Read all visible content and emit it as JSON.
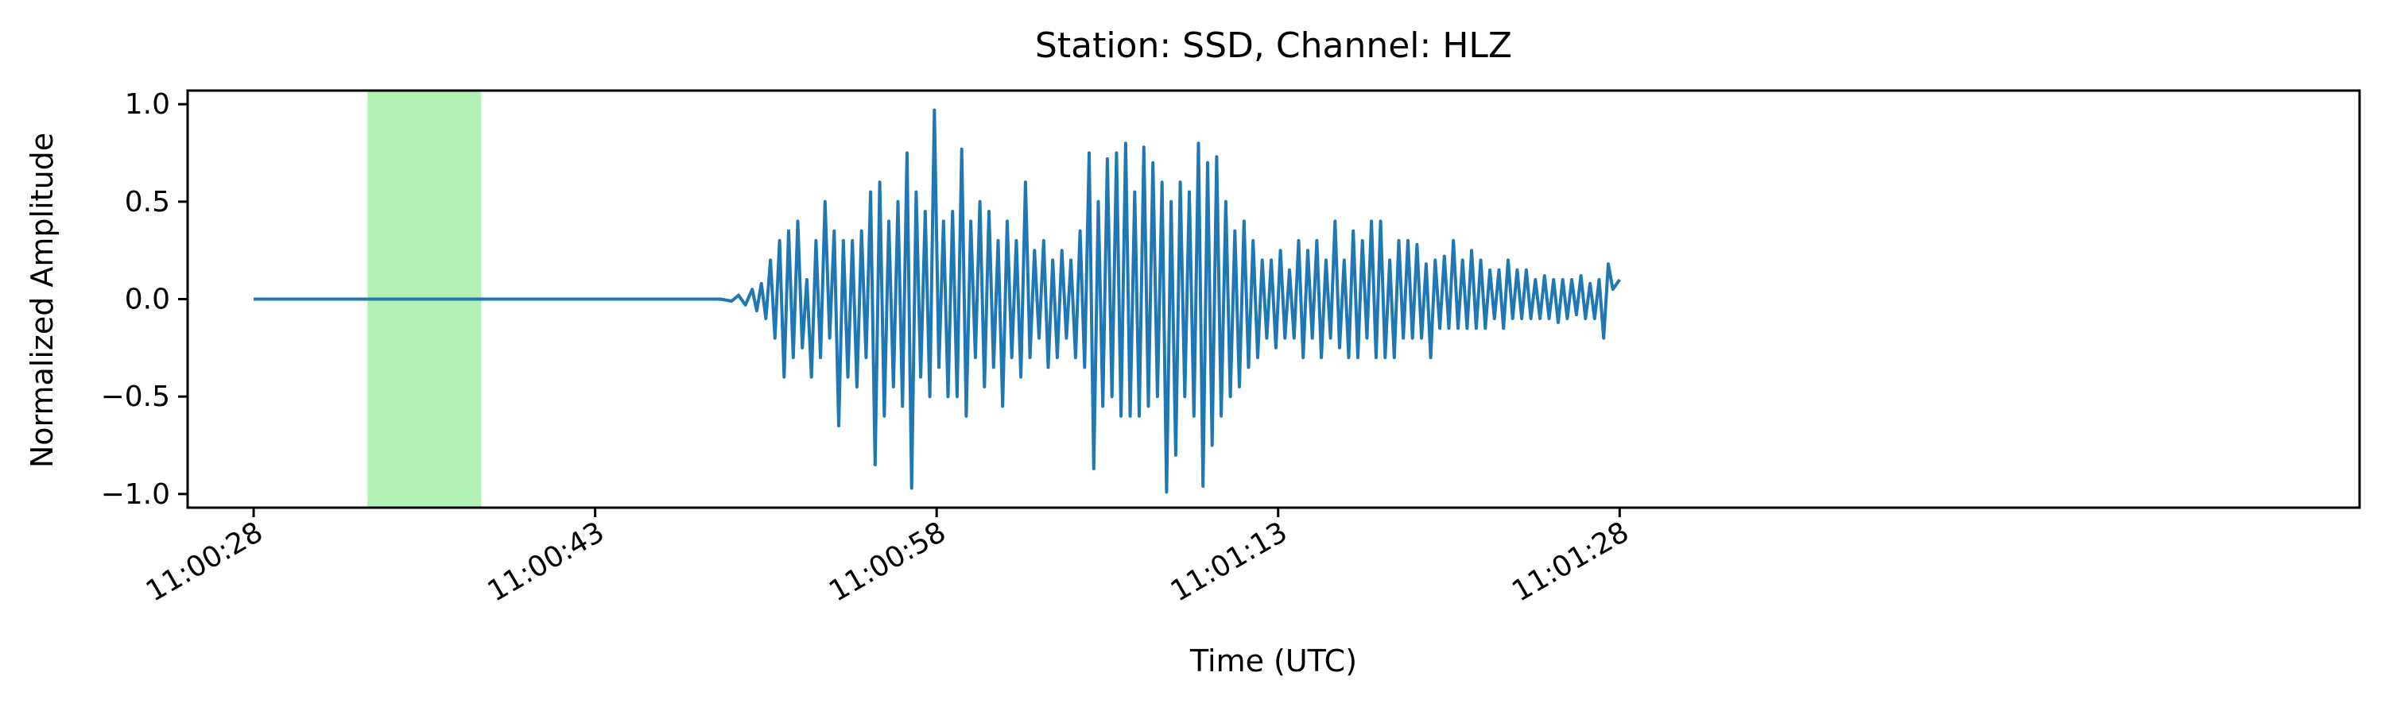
{
  "chart_data": {
    "type": "line",
    "title": "Station: SSD, Channel: HLZ",
    "xlabel": "Time (UTC)",
    "ylabel": "Normalized Amplitude",
    "x_unit": "seconds_since_11:00:28",
    "xlim": [
      -2.9,
      92.5
    ],
    "ylim": [
      -1.07,
      1.07
    ],
    "x_ticks": [
      {
        "value": 0,
        "label": "11:00:28"
      },
      {
        "value": 15,
        "label": "11:00:43"
      },
      {
        "value": 30,
        "label": "11:00:58"
      },
      {
        "value": 45,
        "label": "11:01:13"
      },
      {
        "value": 60,
        "label": "11:01:28"
      }
    ],
    "y_ticks": [
      {
        "value": 1.0,
        "label": "1.0"
      },
      {
        "value": 0.5,
        "label": "0.5"
      },
      {
        "value": 0.0,
        "label": "0.0"
      },
      {
        "value": -0.5,
        "label": "−0.5"
      },
      {
        "value": -1.0,
        "label": "−1.0"
      }
    ],
    "highlight": {
      "x_start": 5.0,
      "x_end": 10.0,
      "color": "#b2f2b2"
    },
    "series": [
      {
        "color": "#1f77b4",
        "points": [
          [
            0,
            0.0
          ],
          [
            20.5,
            0.0
          ],
          [
            21.0,
            -0.01
          ],
          [
            21.3,
            0.02
          ],
          [
            21.6,
            -0.03
          ],
          [
            21.9,
            0.05
          ],
          [
            22.1,
            -0.06
          ],
          [
            22.3,
            0.08
          ],
          [
            22.5,
            -0.1
          ],
          [
            22.7,
            0.2
          ],
          [
            22.9,
            -0.2
          ],
          [
            23.1,
            0.3
          ],
          [
            23.3,
            -0.4
          ],
          [
            23.5,
            0.35
          ],
          [
            23.7,
            -0.3
          ],
          [
            23.9,
            0.4
          ],
          [
            24.1,
            -0.25
          ],
          [
            24.3,
            0.1
          ],
          [
            24.5,
            -0.4
          ],
          [
            24.7,
            0.3
          ],
          [
            24.9,
            -0.3
          ],
          [
            25.1,
            0.5
          ],
          [
            25.3,
            -0.2
          ],
          [
            25.5,
            0.35
          ],
          [
            25.7,
            -0.65
          ],
          [
            25.9,
            0.3
          ],
          [
            26.1,
            -0.4
          ],
          [
            26.3,
            0.3
          ],
          [
            26.5,
            -0.45
          ],
          [
            26.7,
            0.35
          ],
          [
            26.9,
            -0.3
          ],
          [
            27.1,
            0.55
          ],
          [
            27.3,
            -0.85
          ],
          [
            27.5,
            0.6
          ],
          [
            27.7,
            -0.6
          ],
          [
            27.9,
            0.4
          ],
          [
            28.1,
            -0.45
          ],
          [
            28.3,
            0.5
          ],
          [
            28.5,
            -0.55
          ],
          [
            28.7,
            0.75
          ],
          [
            28.9,
            -0.97
          ],
          [
            29.1,
            0.55
          ],
          [
            29.3,
            -0.4
          ],
          [
            29.5,
            0.45
          ],
          [
            29.7,
            -0.5
          ],
          [
            29.9,
            0.97
          ],
          [
            30.1,
            -0.35
          ],
          [
            30.3,
            0.4
          ],
          [
            30.5,
            -0.5
          ],
          [
            30.7,
            0.45
          ],
          [
            30.9,
            -0.5
          ],
          [
            31.1,
            0.77
          ],
          [
            31.3,
            -0.6
          ],
          [
            31.5,
            0.4
          ],
          [
            31.7,
            -0.3
          ],
          [
            31.9,
            0.5
          ],
          [
            32.1,
            -0.45
          ],
          [
            32.3,
            0.45
          ],
          [
            32.5,
            -0.35
          ],
          [
            32.7,
            0.3
          ],
          [
            32.9,
            -0.55
          ],
          [
            33.1,
            0.4
          ],
          [
            33.3,
            -0.3
          ],
          [
            33.5,
            0.3
          ],
          [
            33.7,
            -0.4
          ],
          [
            33.9,
            0.6
          ],
          [
            34.1,
            -0.3
          ],
          [
            34.3,
            0.25
          ],
          [
            34.5,
            -0.2
          ],
          [
            34.7,
            0.3
          ],
          [
            34.9,
            -0.35
          ],
          [
            35.1,
            0.2
          ],
          [
            35.3,
            -0.3
          ],
          [
            35.5,
            0.25
          ],
          [
            35.7,
            -0.2
          ],
          [
            35.9,
            0.2
          ],
          [
            36.1,
            -0.3
          ],
          [
            36.3,
            0.35
          ],
          [
            36.5,
            -0.35
          ],
          [
            36.7,
            0.75
          ],
          [
            36.9,
            -0.87
          ],
          [
            37.1,
            0.5
          ],
          [
            37.3,
            -0.55
          ],
          [
            37.5,
            0.72
          ],
          [
            37.7,
            -0.5
          ],
          [
            37.9,
            0.75
          ],
          [
            38.1,
            -0.6
          ],
          [
            38.3,
            0.8
          ],
          [
            38.5,
            -0.6
          ],
          [
            38.7,
            0.55
          ],
          [
            38.9,
            -0.6
          ],
          [
            39.1,
            0.78
          ],
          [
            39.3,
            -0.55
          ],
          [
            39.5,
            0.7
          ],
          [
            39.7,
            -0.5
          ],
          [
            39.9,
            0.6
          ],
          [
            40.1,
            -0.99
          ],
          [
            40.3,
            0.5
          ],
          [
            40.5,
            -0.8
          ],
          [
            40.7,
            0.6
          ],
          [
            40.9,
            -0.5
          ],
          [
            41.1,
            0.55
          ],
          [
            41.3,
            -0.6
          ],
          [
            41.5,
            0.8
          ],
          [
            41.7,
            -0.96
          ],
          [
            41.9,
            0.7
          ],
          [
            42.1,
            -0.75
          ],
          [
            42.3,
            0.73
          ],
          [
            42.5,
            -0.6
          ],
          [
            42.7,
            0.5
          ],
          [
            42.9,
            -0.5
          ],
          [
            43.1,
            0.35
          ],
          [
            43.3,
            -0.45
          ],
          [
            43.5,
            0.4
          ],
          [
            43.7,
            -0.35
          ],
          [
            43.9,
            0.3
          ],
          [
            44.1,
            -0.3
          ],
          [
            44.3,
            0.2
          ],
          [
            44.5,
            -0.2
          ],
          [
            44.7,
            0.2
          ],
          [
            44.9,
            -0.25
          ],
          [
            45.1,
            0.25
          ],
          [
            45.3,
            -0.2
          ],
          [
            45.5,
            0.15
          ],
          [
            45.7,
            -0.2
          ],
          [
            45.9,
            0.3
          ],
          [
            46.1,
            -0.3
          ],
          [
            46.3,
            0.25
          ],
          [
            46.5,
            -0.2
          ],
          [
            46.7,
            0.3
          ],
          [
            46.9,
            -0.3
          ],
          [
            47.1,
            0.2
          ],
          [
            47.3,
            -0.2
          ],
          [
            47.5,
            0.4
          ],
          [
            47.7,
            -0.25
          ],
          [
            47.9,
            0.2
          ],
          [
            48.1,
            -0.3
          ],
          [
            48.3,
            0.35
          ],
          [
            48.5,
            -0.3
          ],
          [
            48.7,
            0.3
          ],
          [
            48.9,
            -0.2
          ],
          [
            49.1,
            0.4
          ],
          [
            49.3,
            -0.3
          ],
          [
            49.5,
            0.4
          ],
          [
            49.7,
            -0.3
          ],
          [
            49.9,
            0.2
          ],
          [
            50.1,
            -0.3
          ],
          [
            50.3,
            0.3
          ],
          [
            50.5,
            -0.2
          ],
          [
            50.7,
            0.3
          ],
          [
            50.9,
            -0.2
          ],
          [
            51.1,
            0.28
          ],
          [
            51.3,
            -0.2
          ],
          [
            51.5,
            0.18
          ],
          [
            51.7,
            -0.3
          ],
          [
            51.9,
            0.2
          ],
          [
            52.1,
            -0.15
          ],
          [
            52.3,
            0.22
          ],
          [
            52.5,
            -0.15
          ],
          [
            52.7,
            0.3
          ],
          [
            52.9,
            -0.15
          ],
          [
            53.1,
            0.2
          ],
          [
            53.3,
            -0.15
          ],
          [
            53.5,
            0.25
          ],
          [
            53.7,
            -0.15
          ],
          [
            53.9,
            0.2
          ],
          [
            54.1,
            -0.15
          ],
          [
            54.3,
            0.15
          ],
          [
            54.5,
            -0.1
          ],
          [
            54.7,
            0.15
          ],
          [
            54.9,
            -0.15
          ],
          [
            55.1,
            0.2
          ],
          [
            55.3,
            -0.1
          ],
          [
            55.5,
            0.15
          ],
          [
            55.7,
            -0.1
          ],
          [
            55.9,
            0.15
          ],
          [
            56.1,
            -0.1
          ],
          [
            56.3,
            0.1
          ],
          [
            56.5,
            -0.1
          ],
          [
            56.7,
            0.12
          ],
          [
            56.9,
            -0.1
          ],
          [
            57.1,
            0.1
          ],
          [
            57.3,
            -0.12
          ],
          [
            57.5,
            0.1
          ],
          [
            57.7,
            -0.1
          ],
          [
            57.9,
            0.1
          ],
          [
            58.1,
            -0.08
          ],
          [
            58.3,
            0.12
          ],
          [
            58.5,
            -0.1
          ],
          [
            58.7,
            0.08
          ],
          [
            58.9,
            -0.1
          ],
          [
            59.1,
            0.1
          ],
          [
            59.3,
            -0.2
          ],
          [
            59.5,
            0.18
          ],
          [
            59.7,
            0.05
          ],
          [
            60.0,
            0.1
          ]
        ]
      }
    ]
  }
}
